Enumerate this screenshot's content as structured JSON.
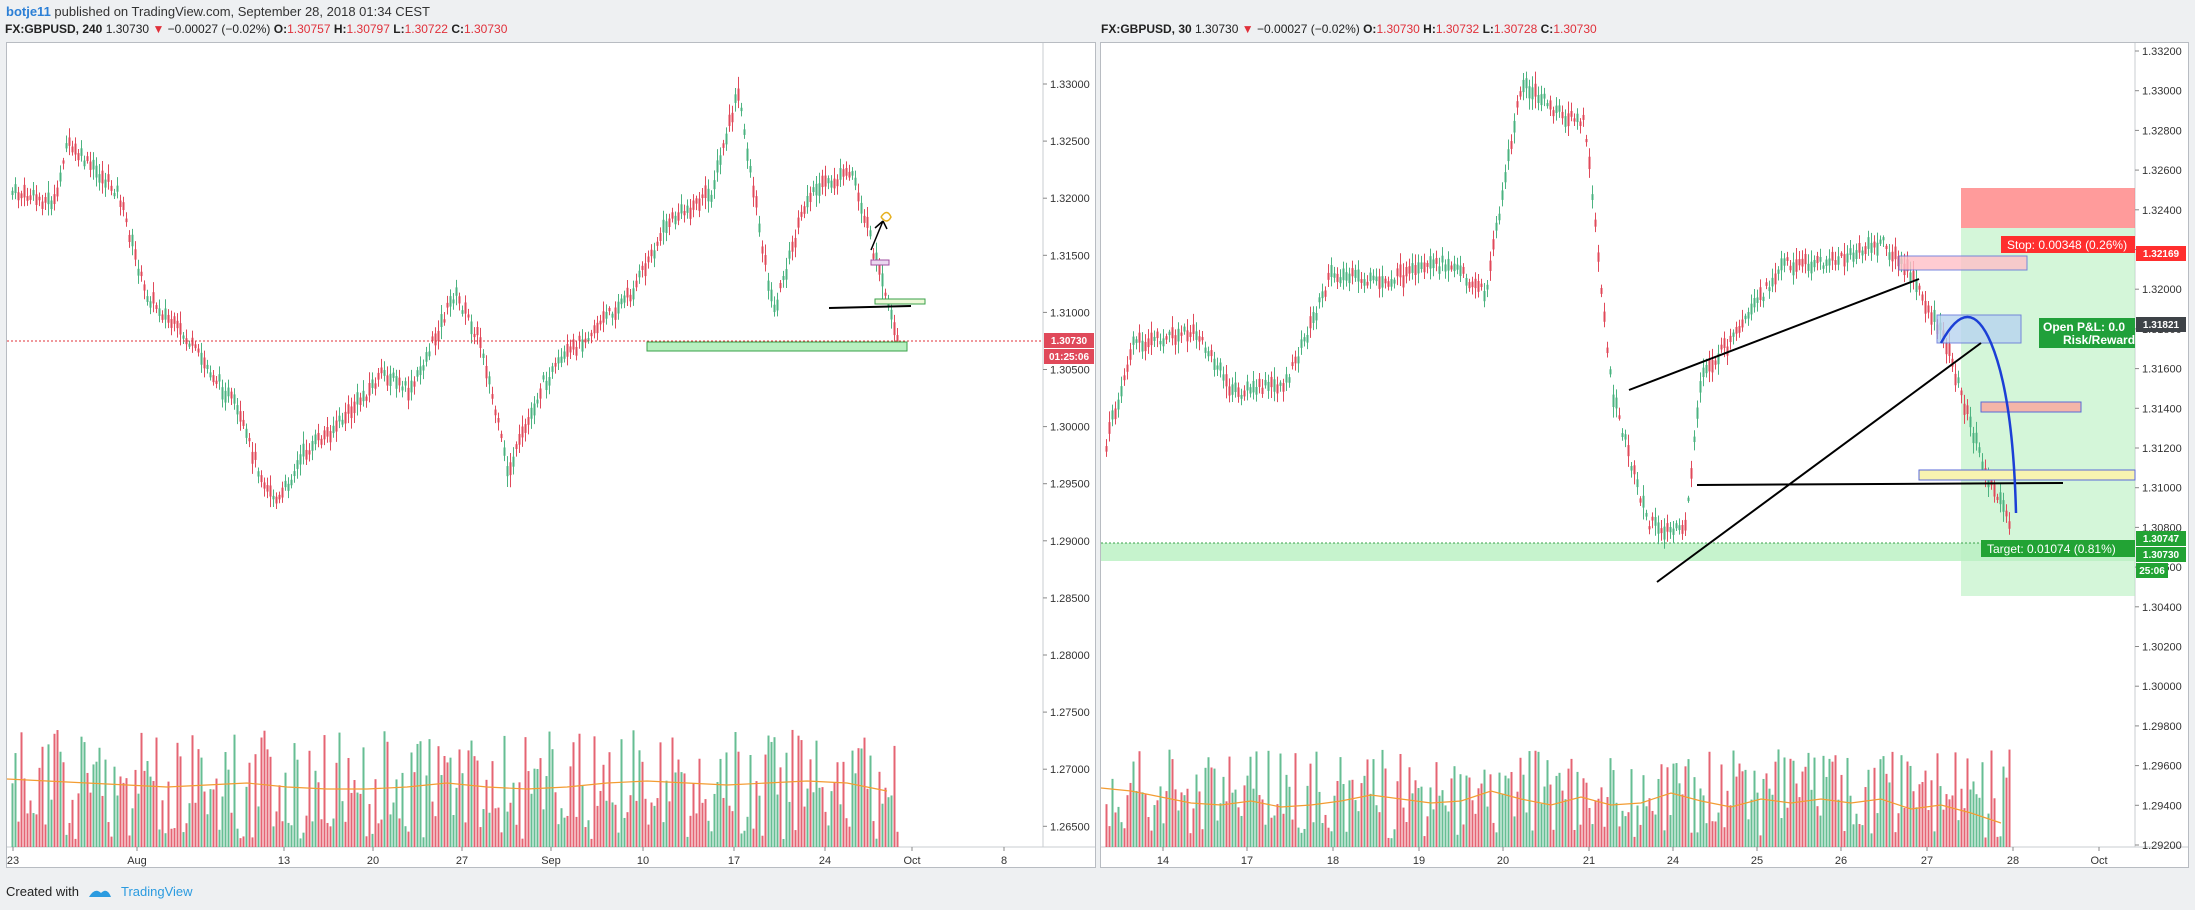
{
  "header": {
    "username": "botje11",
    "published_text": "published on TradingView.com, September 28, 2018 01:34 CEST"
  },
  "left_panel": {
    "symbol": "FX:GBPUSD, 240",
    "last": "1.30730",
    "change": "−0.00027 (−0.02%)",
    "open_label": "O:",
    "open": "1.30757",
    "high_label": "H:",
    "high": "1.30797",
    "low_label": "L:",
    "low": "1.30722",
    "close_label": "C:",
    "close": "1.30730",
    "price_ticks": [
      "1.33000",
      "1.32500",
      "1.32000",
      "1.31500",
      "1.31000",
      "1.30500",
      "1.30000",
      "1.29500",
      "1.29000",
      "1.28500",
      "1.28000",
      "1.27500",
      "1.27000",
      "1.26500"
    ],
    "time_ticks": [
      "23",
      "Aug",
      "13",
      "20",
      "27",
      "Sep",
      "10",
      "17",
      "24",
      "Oct",
      "8"
    ],
    "last_price_tag": "1.30730",
    "countdown_tag": "01:25:06"
  },
  "right_panel": {
    "symbol": "FX:GBPUSD, 30",
    "last": "1.30730",
    "change": "−0.00027 (−0.02%)",
    "open_label": "O:",
    "open": "1.30730",
    "high_label": "H:",
    "high": "1.30732",
    "low_label": "L:",
    "low": "1.30728",
    "close_label": "C:",
    "close": "1.30730",
    "price_ticks": [
      "1.33200",
      "1.33000",
      "1.32800",
      "1.32600",
      "1.32400",
      "1.32200",
      "1.32000",
      "1.31800",
      "1.31600",
      "1.31400",
      "1.31200",
      "1.31000",
      "1.30800",
      "1.30600",
      "1.30400",
      "1.30200",
      "1.30000",
      "1.29800",
      "1.29600",
      "1.29400",
      "1.29200"
    ],
    "time_ticks": [
      "14",
      "17",
      "18",
      "19",
      "20",
      "21",
      "24",
      "25",
      "26",
      "27",
      "28",
      "Oct"
    ],
    "stop_label": "Stop: 0.00348 (0.26%)",
    "stop_price": "1.32169",
    "entry_price": "1.31821",
    "pnl_label": "Open P&L: 0.0",
    "rr_label": "Risk/Reward",
    "target_label": "Target: 0.01074 (0.81%)",
    "target_price": "1.30747",
    "last_price_tag": "1.30730",
    "countdown_tag": "25:06"
  },
  "footer": {
    "created_with": "Created with",
    "brand": "TradingView"
  },
  "colors": {
    "up": "#4bb380",
    "down": "#e0495a",
    "volume_ma": "#f39c32",
    "zone_green": "#b8f0c0",
    "stop_red": "#ff3b3b",
    "target_green": "#22a334",
    "accent_blue": "#1c3fd6"
  }
}
